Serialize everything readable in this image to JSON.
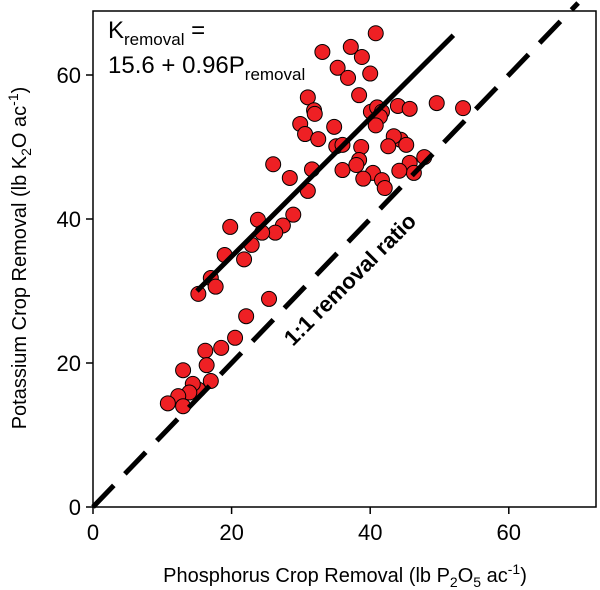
{
  "chart_data": {
    "type": "scatter",
    "xlabel": {
      "main": "Phosphorus Crop Removal (lb P",
      "sub1": "2",
      "mid": "O",
      "sub2": "5",
      "tail": " ac",
      "sup": "-1",
      "close": ")"
    },
    "ylabel": {
      "main": "Potassium Crop Removal (lb K",
      "sub1": "2",
      "mid": "O ac",
      "sup": "-1",
      "close": ")"
    },
    "xlim": [
      0,
      70
    ],
    "ylim": [
      0,
      70
    ],
    "xticks": [
      0,
      20,
      40,
      60
    ],
    "yticks": [
      0,
      20,
      40,
      60
    ],
    "xtick_labels": [
      "0",
      "20",
      "40",
      "60"
    ],
    "ytick_labels": [
      "0",
      "20",
      "40",
      "60"
    ],
    "grid": false,
    "marker_color": "#ee2024",
    "equation": {
      "line1_main": "K",
      "line1_sub": "removal",
      "line1_tail": " =",
      "line2_main": "15.6 + 0.96P",
      "line2_sub": "removal"
    },
    "regression": {
      "intercept": 15.6,
      "slope": 0.96,
      "x_range": [
        15,
        52
      ]
    },
    "reference_line": {
      "label": "1:1 removal ratio",
      "slope": 1,
      "intercept": 0
    },
    "points": [
      [
        37.2,
        63.9
      ],
      [
        40.8,
        65.8
      ],
      [
        33.1,
        63.2
      ],
      [
        38.8,
        62.5
      ],
      [
        35.3,
        61.0
      ],
      [
        36.8,
        59.6
      ],
      [
        40.0,
        60.2
      ],
      [
        38.4,
        57.2
      ],
      [
        31.0,
        56.9
      ],
      [
        31.9,
        55.1
      ],
      [
        32.0,
        54.6
      ],
      [
        34.8,
        52.8
      ],
      [
        29.9,
        53.2
      ],
      [
        30.6,
        51.8
      ],
      [
        32.5,
        51.1
      ],
      [
        35.1,
        50.1
      ],
      [
        40.1,
        54.9
      ],
      [
        41.0,
        55.5
      ],
      [
        41.7,
        54.9
      ],
      [
        44.0,
        55.7
      ],
      [
        41.4,
        54.2
      ],
      [
        40.8,
        53.0
      ],
      [
        44.4,
        51.0
      ],
      [
        43.4,
        51.5
      ],
      [
        45.7,
        55.3
      ],
      [
        49.6,
        56.1
      ],
      [
        53.4,
        55.4
      ],
      [
        45.2,
        50.3
      ],
      [
        42.6,
        50.1
      ],
      [
        45.7,
        47.8
      ],
      [
        47.8,
        48.6
      ],
      [
        46.3,
        46.4
      ],
      [
        38.7,
        50.0
      ],
      [
        36.0,
        50.3
      ],
      [
        38.4,
        48.2
      ],
      [
        36.0,
        46.8
      ],
      [
        38.0,
        47.5
      ],
      [
        31.6,
        46.9
      ],
      [
        40.4,
        46.4
      ],
      [
        44.2,
        46.7
      ],
      [
        41.7,
        45.4
      ],
      [
        26.0,
        47.6
      ],
      [
        39.0,
        45.6
      ],
      [
        28.4,
        45.7
      ],
      [
        42.1,
        44.3
      ],
      [
        31.0,
        43.9
      ],
      [
        28.9,
        40.6
      ],
      [
        23.8,
        39.9
      ],
      [
        27.4,
        39.1
      ],
      [
        26.3,
        38.1
      ],
      [
        24.4,
        38.1
      ],
      [
        19.8,
        38.9
      ],
      [
        22.9,
        36.4
      ],
      [
        21.8,
        34.4
      ],
      [
        19.0,
        35.0
      ],
      [
        15.2,
        29.6
      ],
      [
        17.0,
        31.8
      ],
      [
        22.1,
        26.5
      ],
      [
        17.7,
        30.6
      ],
      [
        25.4,
        28.9
      ],
      [
        20.5,
        23.5
      ],
      [
        18.5,
        22.1
      ],
      [
        16.2,
        21.7
      ],
      [
        16.4,
        19.7
      ],
      [
        13.0,
        19.0
      ],
      [
        17.0,
        17.5
      ],
      [
        15.2,
        16.3
      ],
      [
        14.4,
        17.1
      ],
      [
        13.9,
        15.9
      ],
      [
        12.3,
        15.4
      ],
      [
        10.8,
        14.4
      ],
      [
        13.0,
        14.0
      ]
    ]
  }
}
